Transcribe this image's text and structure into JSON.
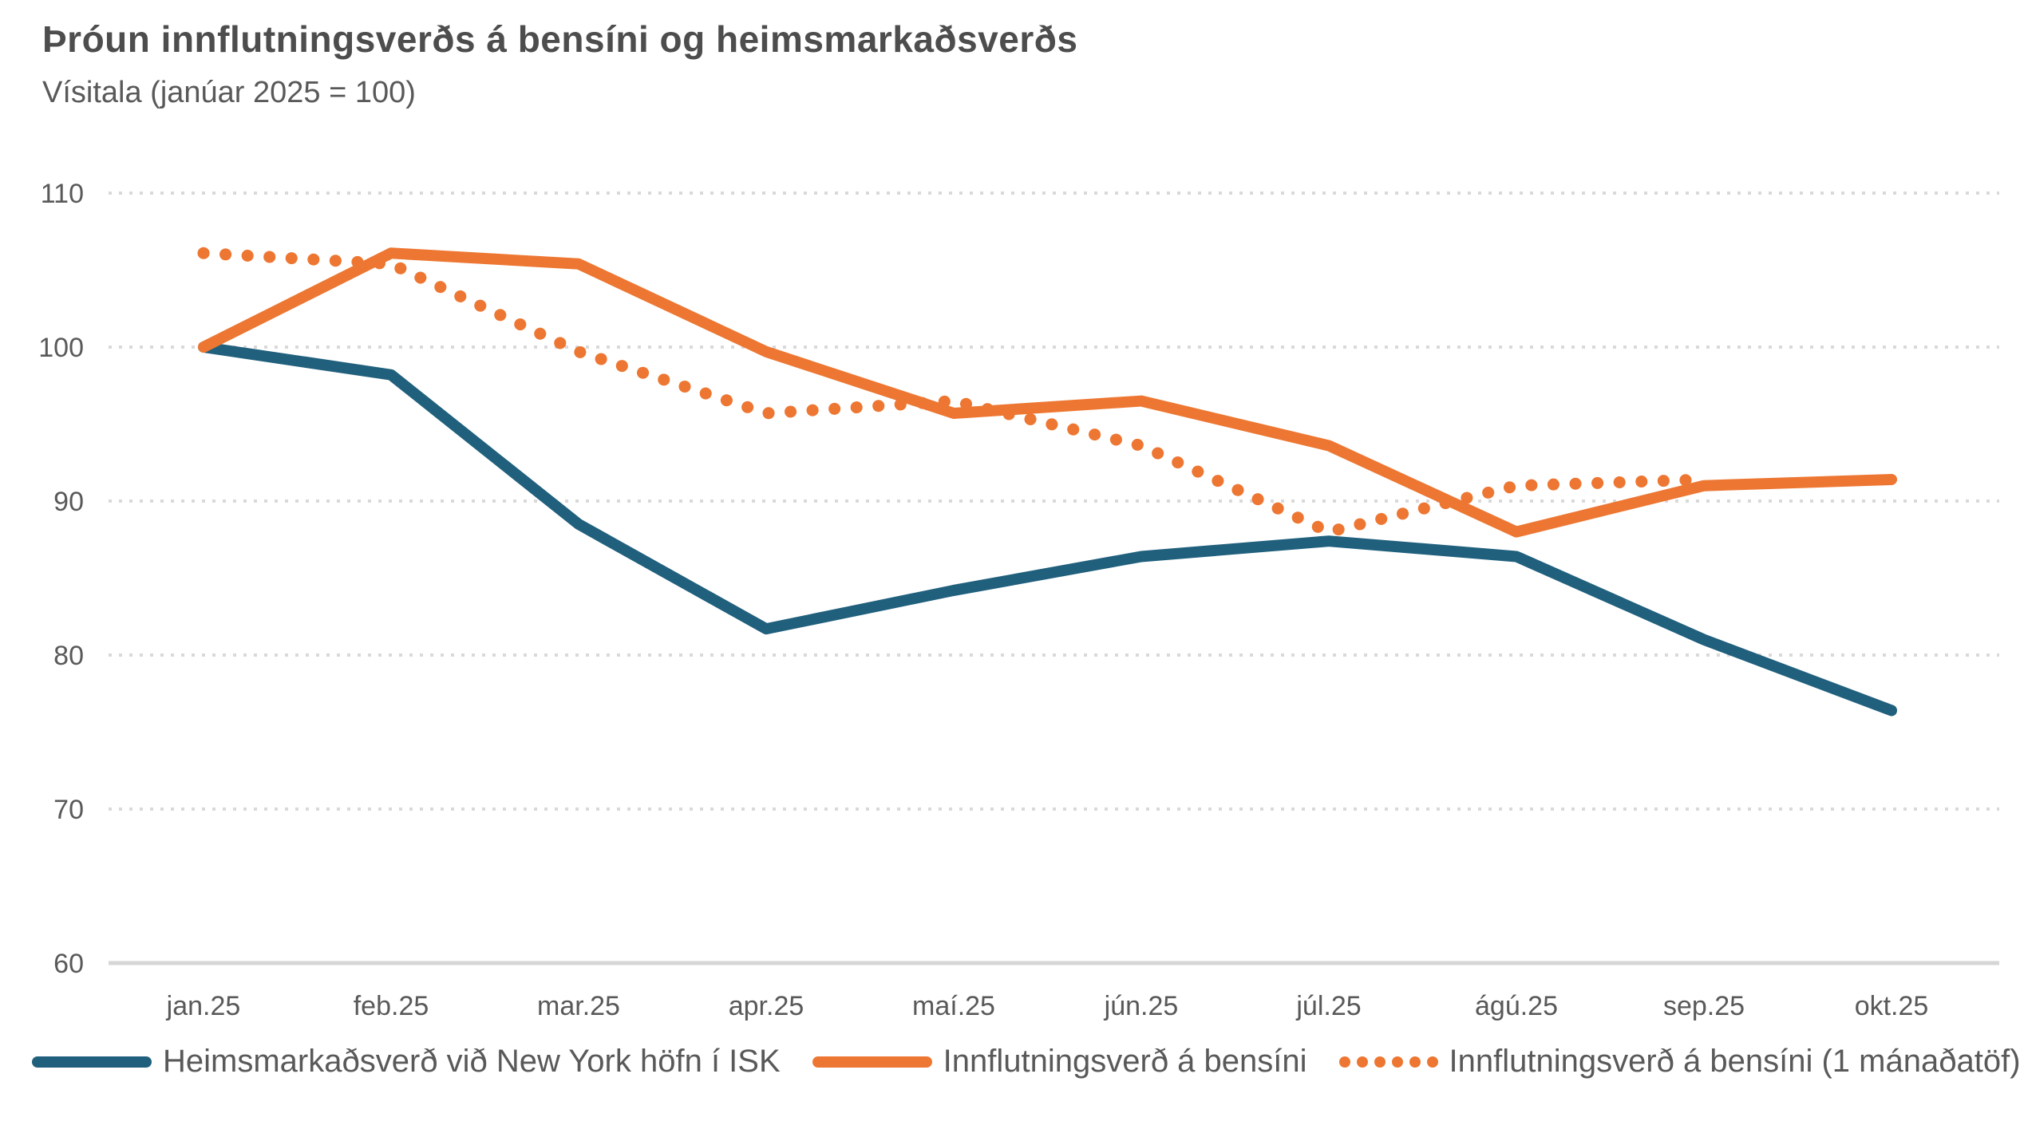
{
  "title": "Þróun innflutningsverðs á bensíni og heimsmarkaðsverðs",
  "subtitle": "Vísitala (janúar 2025 = 100)",
  "colors": {
    "blue": "#20607d",
    "orange": "#ed7732",
    "grid": "#d9d9d9",
    "axis_line": "#d6d6d6",
    "tick_text": "#595959",
    "title_text": "#4d4d4d"
  },
  "chart_data": {
    "type": "line",
    "title": "Þróun innflutningsverðs á bensíni og heimsmarkaðsverðs",
    "subtitle": "Vísitala (janúar 2025 = 100)",
    "categories": [
      "jan.25",
      "feb.25",
      "mar.25",
      "apr.25",
      "maí.25",
      "jún.25",
      "júl.25",
      "ágú.25",
      "sep.25",
      "okt.25"
    ],
    "series": [
      {
        "name": "Heimsmarkaðsverð við New York höfn í ISK",
        "line_style": "solid",
        "color_key": "blue",
        "values": [
          100,
          98.2,
          88.5,
          81.7,
          84.2,
          86.4,
          87.4,
          86.4,
          81.0,
          76.4
        ]
      },
      {
        "name": "Innflutningsverð á bensíni",
        "line_style": "solid",
        "color_key": "orange",
        "values": [
          100,
          106.1,
          105.4,
          99.7,
          95.7,
          96.5,
          93.6,
          88.0,
          91.0,
          91.4
        ]
      },
      {
        "name": "Innflutningsverð á bensíni (1 mánaðatöf)",
        "line_style": "dotted",
        "color_key": "orange",
        "values": [
          106.1,
          105.4,
          99.7,
          95.7,
          96.5,
          93.6,
          88.0,
          91.0,
          91.4,
          null
        ]
      }
    ],
    "xlabel": "",
    "ylabel": "",
    "ylim": [
      60,
      110
    ],
    "yticks": [
      60,
      70,
      80,
      90,
      100,
      110
    ],
    "grid": "horizontal-dotted",
    "legend_position": "bottom"
  }
}
